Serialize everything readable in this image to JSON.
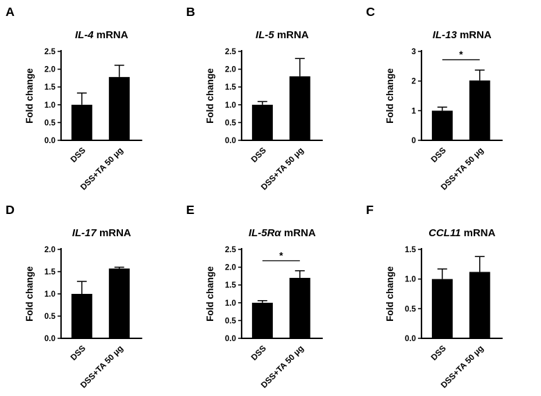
{
  "figure": {
    "background": "#ffffff",
    "bar_color": "#000000",
    "axis_color": "#000000"
  },
  "chart_data": [
    {
      "type": "bar",
      "panel_label": "A",
      "title_gene": "IL-4",
      "title_rest": " mRNA",
      "ylabel": "Fold change",
      "ylim": [
        0,
        2.5
      ],
      "yticks": [
        0,
        0.5,
        1.0,
        1.5,
        2.0,
        2.5
      ],
      "ytick_labels": [
        "0.0",
        "0.5",
        "1.0",
        "1.5",
        "2.0",
        "2.5"
      ],
      "categories": [
        "DSS",
        "DSS+TA 50 μg"
      ],
      "values": [
        1.0,
        1.78
      ],
      "errors": [
        0.33,
        0.33
      ],
      "significance": null,
      "grid": false,
      "legend": "none"
    },
    {
      "type": "bar",
      "panel_label": "B",
      "title_gene": "IL-5",
      "title_rest": " mRNA",
      "ylabel": "Fold change",
      "ylim": [
        0,
        2.5
      ],
      "yticks": [
        0,
        0.5,
        1.0,
        1.5,
        2.0,
        2.5
      ],
      "ytick_labels": [
        "0.0",
        "0.5",
        "1.0",
        "1.5",
        "2.0",
        "2.5"
      ],
      "categories": [
        "DSS",
        "DSS+TA 50 μg"
      ],
      "values": [
        1.0,
        1.8
      ],
      "errors": [
        0.09,
        0.5
      ],
      "significance": null,
      "grid": false,
      "legend": "none"
    },
    {
      "type": "bar",
      "panel_label": "C",
      "title_gene": "IL-13",
      "title_rest": " mRNA",
      "ylabel": "Fold change",
      "ylim": [
        0,
        3
      ],
      "yticks": [
        0,
        1,
        2,
        3
      ],
      "ytick_labels": [
        "0",
        "1",
        "2",
        "3"
      ],
      "categories": [
        "DSS",
        "DSS+TA 50 μg"
      ],
      "values": [
        1.0,
        2.02
      ],
      "errors": [
        0.12,
        0.35
      ],
      "significance": {
        "label": "*",
        "y_value": 2.72
      },
      "grid": false,
      "legend": "none"
    },
    {
      "type": "bar",
      "panel_label": "D",
      "title_gene": "IL-17",
      "title_rest": " mRNA",
      "ylabel": "Fold change",
      "ylim": [
        0,
        2.0
      ],
      "yticks": [
        0,
        0.5,
        1.0,
        1.5,
        2.0
      ],
      "ytick_labels": [
        "0.0",
        "0.5",
        "1.0",
        "1.5",
        "2.0"
      ],
      "categories": [
        "DSS",
        "DSS+TA 50 μg"
      ],
      "values": [
        1.0,
        1.57
      ],
      "errors": [
        0.28,
        0.03
      ],
      "significance": null,
      "grid": false,
      "legend": "none"
    },
    {
      "type": "bar",
      "panel_label": "E",
      "title_gene": "IL-5Rα",
      "title_rest": " mRNA",
      "ylabel": "Fold change",
      "ylim": [
        0,
        2.5
      ],
      "yticks": [
        0,
        0.5,
        1.0,
        1.5,
        2.0,
        2.5
      ],
      "ytick_labels": [
        "0.0",
        "0.5",
        "1.0",
        "1.5",
        "2.0",
        "2.5"
      ],
      "categories": [
        "DSS",
        "DSS+TA 50 μg"
      ],
      "values": [
        1.0,
        1.7
      ],
      "errors": [
        0.06,
        0.2
      ],
      "significance": {
        "label": "*",
        "y_value": 2.18
      },
      "grid": false,
      "legend": "none"
    },
    {
      "type": "bar",
      "panel_label": "F",
      "title_gene": "CCL11",
      "title_rest": " mRNA",
      "ylabel": "Fold change",
      "ylim": [
        0,
        1.5
      ],
      "yticks": [
        0,
        0.5,
        1.0,
        1.5
      ],
      "ytick_labels": [
        "0.0",
        "0.5",
        "1.0",
        "1.5"
      ],
      "categories": [
        "DSS",
        "DSS+TA 50 μg"
      ],
      "values": [
        1.0,
        1.12
      ],
      "errors": [
        0.17,
        0.26
      ],
      "significance": null,
      "grid": false,
      "legend": "none"
    }
  ]
}
